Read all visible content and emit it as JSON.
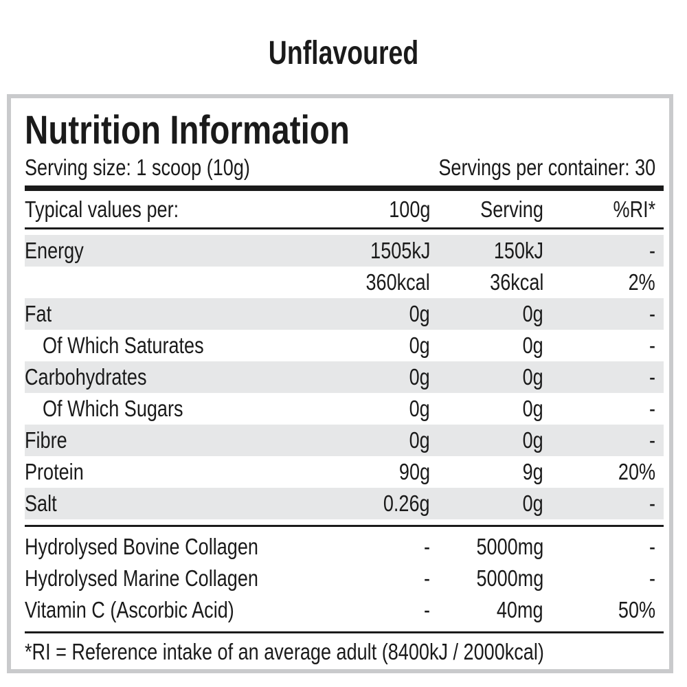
{
  "flavour": "Unflavoured",
  "title": "Nutrition Information",
  "serving_size": "Serving size: 1 scoop (10g)",
  "servings_per_container": "Servings per container: 30",
  "header": {
    "label": "Typical values per:",
    "per100": "100g",
    "serving": "Serving",
    "ri": "%RI*"
  },
  "rows": [
    {
      "label": "Energy",
      "per100": "1505kJ",
      "serving": "150kJ",
      "ri": "-"
    },
    {
      "label": "",
      "per100": "360kcal",
      "serving": "36kcal",
      "ri": "2%"
    },
    {
      "label": "Fat",
      "per100": "0g",
      "serving": "0g",
      "ri": "-"
    },
    {
      "label": "Of Which Saturates",
      "per100": "0g",
      "serving": "0g",
      "ri": "-"
    },
    {
      "label": "Carbohydrates",
      "per100": "0g",
      "serving": "0g",
      "ri": "-"
    },
    {
      "label": "Of Which Sugars",
      "per100": "0g",
      "serving": "0g",
      "ri": "-"
    },
    {
      "label": "Fibre",
      "per100": "0g",
      "serving": "0g",
      "ri": "-"
    },
    {
      "label": "Protein",
      "per100": "90g",
      "serving": "9g",
      "ri": "20%"
    },
    {
      "label": "Salt",
      "per100": "0.26g",
      "serving": "0g",
      "ri": "-"
    }
  ],
  "extra_rows": [
    {
      "label": "Hydrolysed Bovine Collagen",
      "per100": "-",
      "serving": "5000mg",
      "ri": "-"
    },
    {
      "label": "Hydrolysed Marine Collagen",
      "per100": "-",
      "serving": "5000mg",
      "ri": "-"
    },
    {
      "label": "Vitamin C (Ascorbic Acid)",
      "per100": "-",
      "serving": "40mg",
      "ri": "50%"
    }
  ],
  "footnote": "*RI = Reference intake of an average adult (8400kJ / 2000kcal)"
}
